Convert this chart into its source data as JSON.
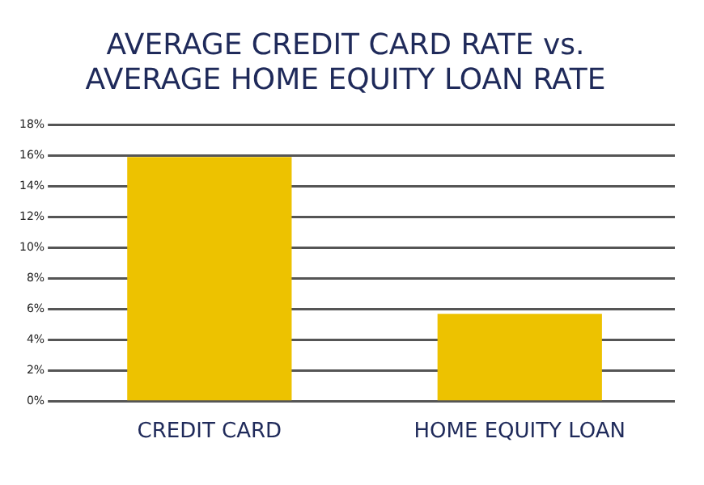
{
  "chart_data": {
    "type": "bar",
    "title": [
      "AVERAGE CREDIT CARD RATE vs.",
      "AVERAGE HOME EQUITY LOAN RATE"
    ],
    "categories": [
      "CREDIT CARD",
      "HOME EQUITY LOAN"
    ],
    "values": [
      15.9,
      5.7
    ],
    "color": "#edc200",
    "ylim": [
      0,
      18
    ],
    "yticks": [
      {
        "value": 0,
        "label": "0%"
      },
      {
        "value": 2,
        "label": "2%"
      },
      {
        "value": 4,
        "label": "4%"
      },
      {
        "value": 6,
        "label": "6%"
      },
      {
        "value": 8,
        "label": "8%"
      },
      {
        "value": 10,
        "label": "10%"
      },
      {
        "value": 12,
        "label": "12%"
      },
      {
        "value": 14,
        "label": "14%"
      },
      {
        "value": 16,
        "label": "16%"
      },
      {
        "value": 18,
        "label": "18%"
      }
    ],
    "grid": "y",
    "legend": false
  }
}
